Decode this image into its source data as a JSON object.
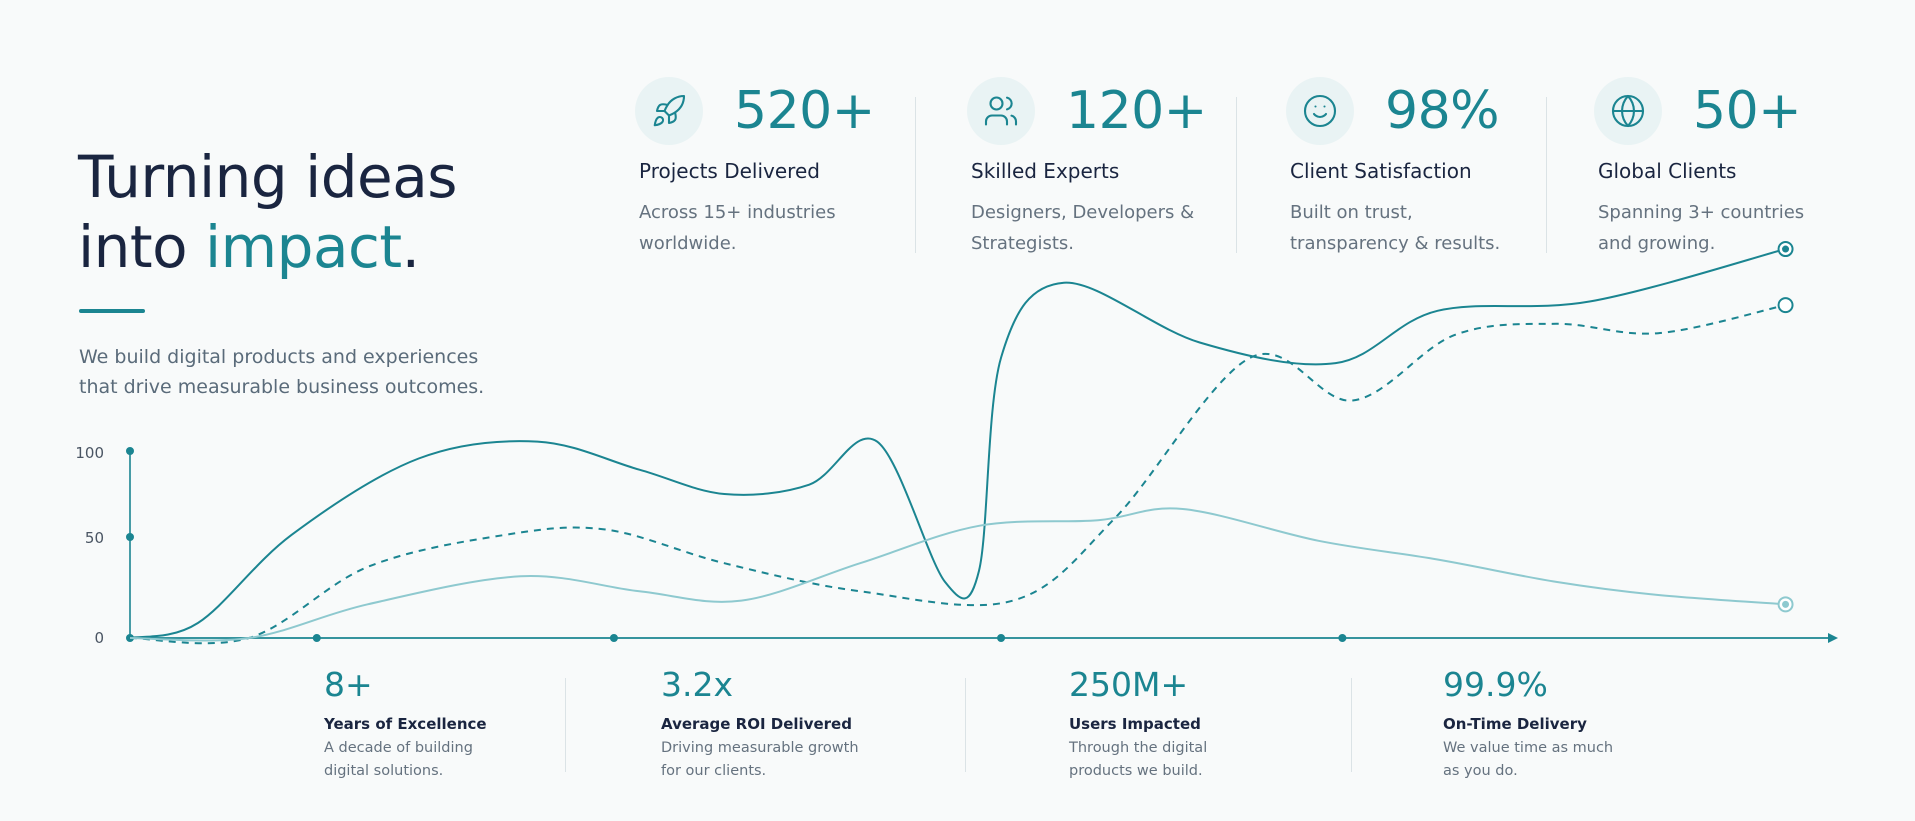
{
  "hero": {
    "title_line1": "Turning ideas",
    "title_line2_prefix": "into ",
    "title_line2_accent": "impact",
    "title_line2_suffix": ".",
    "subtitle_line1": "We build digital products and experiences",
    "subtitle_line2": "that drive measurable business outcomes."
  },
  "top_stats": [
    {
      "icon": "rocket-icon",
      "value": "520+",
      "label": "Projects Delivered",
      "desc_line1": "Across 15+ industries",
      "desc_line2": "worldwide."
    },
    {
      "icon": "users-icon",
      "value": "120+",
      "label": "Skilled Experts",
      "desc_line1": "Designers, Developers &",
      "desc_line2": "Strategists."
    },
    {
      "icon": "smile-icon",
      "value": "98%",
      "label": "Client Satisfaction",
      "desc_line1": "Built on trust,",
      "desc_line2": "transparency & results."
    },
    {
      "icon": "globe-icon",
      "value": "50+",
      "label": "Global Clients",
      "desc_line1": "Spanning 3+ countries",
      "desc_line2": "and growing."
    }
  ],
  "bottom_stats": [
    {
      "value": "8+",
      "label": "Years of Excellence",
      "desc_line1": "A decade of building",
      "desc_line2": "digital solutions."
    },
    {
      "value": "3.2x",
      "label": "Average ROI Delivered",
      "desc_line1": "Driving measurable growth",
      "desc_line2": "for our clients."
    },
    {
      "value": "250M+",
      "label": "Users Impacted",
      "desc_line1": "Through the digital",
      "desc_line2": "products we build."
    },
    {
      "value": "99.9%",
      "label": "On-Time Delivery",
      "desc_line1": "We value time as much",
      "desc_line2": "as you do."
    }
  ],
  "colors": {
    "accent": "#1b8591",
    "light_series": "#8ec9cf",
    "text_dark": "#1a2540",
    "text_muted": "#65727f"
  },
  "chart_data": {
    "type": "line",
    "y_ticks": [
      "0",
      "50",
      "100"
    ],
    "ylim": [
      0,
      215
    ],
    "xlim": [
      0,
      100
    ],
    "grid": false,
    "series": [
      {
        "style": "solid",
        "color": "#1b8591",
        "x": [
          0,
          4,
          9.5,
          17,
          24,
          30,
          35,
          40,
          44,
          48,
          50,
          51.3,
          55,
          63,
          71,
          77,
          86,
          97.5
        ],
        "y": [
          0,
          8,
          55,
          96,
          105,
          90,
          77,
          82,
          105,
          30,
          36,
          150,
          190,
          158,
          147,
          175,
          180,
          208
        ]
      },
      {
        "style": "dashed",
        "color": "#1b8591",
        "x": [
          0,
          7,
          14,
          22,
          28,
          35,
          43,
          52,
          58,
          66,
          72,
          78,
          84,
          90,
          97.5
        ],
        "y": [
          0,
          0,
          38,
          55,
          58,
          40,
          25,
          20,
          64,
          150,
          127,
          162,
          168,
          163,
          178
        ]
      },
      {
        "style": "solid",
        "color": "#8ec9cf",
        "x": [
          0,
          7,
          14,
          23,
          30,
          36,
          43,
          50,
          57,
          62,
          70,
          77,
          84,
          90,
          97.5
        ],
        "y": [
          0,
          0,
          18,
          33,
          25,
          20,
          40,
          60,
          63,
          69,
          52,
          42,
          30,
          23,
          18
        ]
      }
    ],
    "x_markers": [
      11,
      28.5,
      51.3,
      71.4
    ]
  }
}
